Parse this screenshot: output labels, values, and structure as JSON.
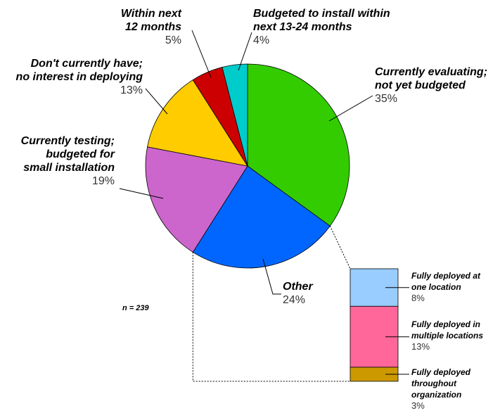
{
  "chart_data": {
    "type": "pie",
    "title": "",
    "sample_size": "n = 239",
    "slices": [
      {
        "id": "evaluating",
        "label_lines": [
          "Currently evaluating;",
          "not yet budgeted"
        ],
        "pct_label": "35%",
        "value": 35,
        "color": "#33cc00"
      },
      {
        "id": "other",
        "label_lines": [
          "Other"
        ],
        "pct_label": "24%",
        "value": 24,
        "color": "#0066ff"
      },
      {
        "id": "testing",
        "label_lines": [
          "Currently testing;",
          "budgeted for",
          "small installation"
        ],
        "pct_label": "19%",
        "value": 19,
        "color": "#cc66cc"
      },
      {
        "id": "no-interest",
        "label_lines": [
          "Don't currently have;",
          "no interest in deploying"
        ],
        "pct_label": "13%",
        "value": 13,
        "color": "#ffcc00"
      },
      {
        "id": "within-12",
        "label_lines": [
          "Within next",
          "12 months"
        ],
        "pct_label": "5%",
        "value": 5,
        "color": "#cc0000"
      },
      {
        "id": "budgeted-13-24",
        "label_lines": [
          "Budgeted to install within",
          "next 13-24 months"
        ],
        "pct_label": "4%",
        "value": 4,
        "color": "#00cccc"
      }
    ],
    "breakdown_of": "other",
    "breakdown": [
      {
        "id": "one-location",
        "label_lines": [
          "Fully deployed at",
          "one location"
        ],
        "pct_label": "8%",
        "value": 8,
        "color": "#99ccff"
      },
      {
        "id": "multiple-locations",
        "label_lines": [
          "Fully deployed in",
          "multiple locations"
        ],
        "pct_label": "13%",
        "value": 13,
        "color": "#ff6699"
      },
      {
        "id": "throughout-org",
        "label_lines": [
          "Fully deployed",
          "throughout",
          "organization"
        ],
        "pct_label": "3%",
        "value": 3,
        "color": "#cc9900"
      }
    ]
  }
}
